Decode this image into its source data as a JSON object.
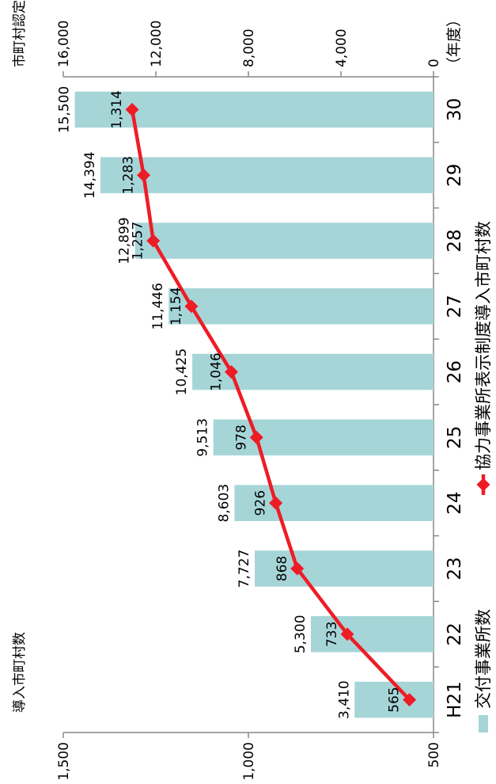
{
  "chart_data": {
    "type": "bar+line",
    "orientation": "rotated-90-ccw",
    "categories": [
      "H21",
      "22",
      "23",
      "24",
      "25",
      "26",
      "27",
      "28",
      "29",
      "30"
    ],
    "x_unit": "（年度）",
    "series": [
      {
        "name": "交付事業所数",
        "type": "bar",
        "axis": "市町村認定事業所数",
        "color": "#a6d5d8",
        "values": [
          3410,
          5300,
          7727,
          8603,
          9513,
          10425,
          11446,
          12899,
          14394,
          15500
        ],
        "labels": [
          "3,410",
          "5,300",
          "7,727",
          "8,603",
          "9,513",
          "10,425",
          "11,446",
          "12,899",
          "14,394",
          "15,500"
        ]
      },
      {
        "name": "協力事業所表示制度導入市町村数",
        "type": "line",
        "axis": "導入市町村数",
        "color": "#ee1c25",
        "values": [
          565,
          733,
          868,
          926,
          978,
          1046,
          1154,
          1257,
          1283,
          1314
        ],
        "labels": [
          "565",
          "733",
          "868",
          "926",
          "978",
          "1,046",
          "1,154",
          "1,257",
          "1,283",
          "1,314"
        ]
      }
    ],
    "bar_axis": {
      "label": "市町村認定事業所数",
      "range": [
        0,
        16000
      ],
      "ticks": [
        "0",
        "4,000",
        "8,000",
        "12,000",
        "16,000"
      ]
    },
    "line_axis": {
      "label": "導入市町村数",
      "range": [
        500,
        1500
      ],
      "ticks": [
        "500",
        "1,000",
        "1,500"
      ]
    },
    "legend_position": "bottom-right",
    "grid": false
  }
}
